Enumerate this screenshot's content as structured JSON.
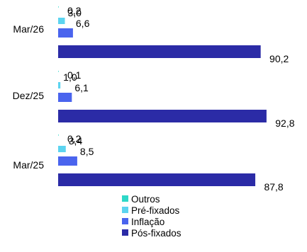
{
  "chart_data": {
    "type": "bar",
    "orientation": "horizontal",
    "categories": [
      "Mar/26",
      "Dez/25",
      "Mar/25"
    ],
    "series": [
      {
        "name": "Outros",
        "color": "#2ED8C8",
        "values": [
          0.2,
          0.1,
          0.2
        ],
        "labels": [
          "0,2",
          "0,1",
          "0,2"
        ]
      },
      {
        "name": "Pré-fixados",
        "color": "#5CD4F0",
        "values": [
          3.0,
          1.0,
          3.4
        ],
        "labels": [
          "3,0",
          "1,0",
          "3,4"
        ]
      },
      {
        "name": "Inflação",
        "color": "#4A64EE",
        "values": [
          6.6,
          6.1,
          8.5
        ],
        "labels": [
          "6,6",
          "6,1",
          "8,5"
        ]
      },
      {
        "name": "Pós-fixados",
        "color": "#2B2BA6",
        "values": [
          90.2,
          92.8,
          87.8
        ],
        "labels": [
          "90,2",
          "92,8",
          "87,8"
        ]
      }
    ],
    "xlim": [
      0,
      100
    ],
    "grid": false,
    "legend_position": "bottom"
  }
}
